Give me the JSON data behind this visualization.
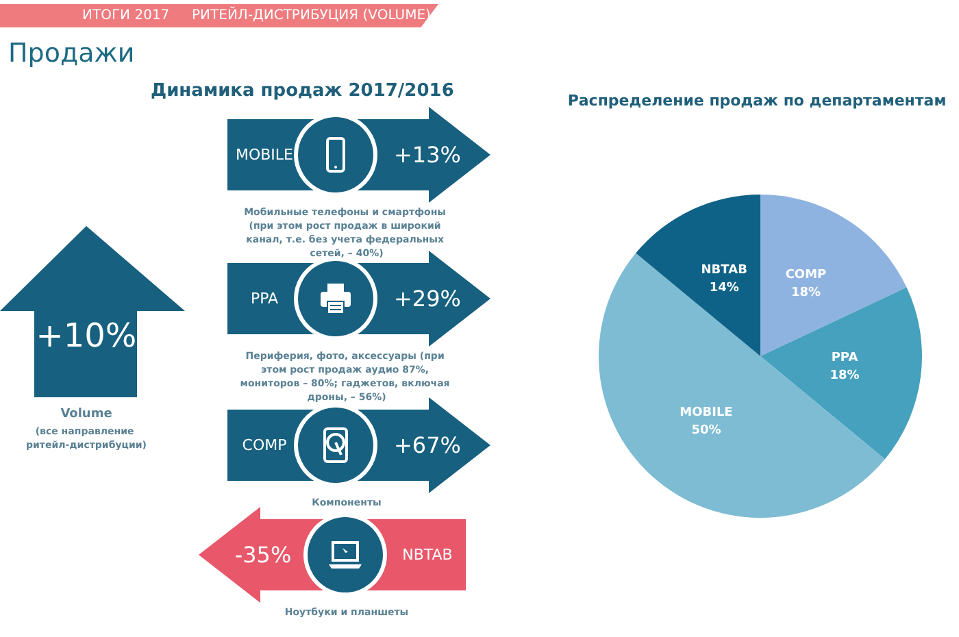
{
  "chart_data": [
    {
      "type": "other",
      "title": "Продажи",
      "annotations": [
        "ИТОГИ 2017",
        "РИТЕЙЛ-ДИСТРИБУЦИЯ (VOLUME)"
      ]
    },
    {
      "type": "other",
      "title": "Динамика продаж 2017/2016",
      "categories": [
        "Volume",
        "MOBILE",
        "PPA",
        "COMP",
        "NBTAB"
      ],
      "values": [
        10,
        13,
        29,
        67,
        -35
      ],
      "value_labels": [
        "+10%",
        "+13%",
        "+29%",
        "+67%",
        "-35%"
      ],
      "colors": [
        "#17607f",
        "#17607f",
        "#17607f",
        "#17607f",
        "#e8576a"
      ],
      "annotations": [
        "(все направление ритейл-дистрибуции)",
        "Мобильные телефоны и смартфоны (при этом рост продаж в широкий канал, т.е. без учета федеральных сетей, – 40%)",
        "Периферия, фото, аксессуары (при этом рост продаж аудио 87%, мониторов – 80%; гаджетов, включая дроны, – 56%)",
        "Компоненты",
        "Ноутбуки и планшеты"
      ]
    },
    {
      "type": "pie",
      "title": "Распределение продаж по департаментам",
      "categories": [
        "COMP",
        "PPA",
        "MOBILE",
        "NBTAB"
      ],
      "values": [
        18,
        18,
        50,
        14
      ],
      "value_labels": [
        "18%",
        "18%",
        "50%",
        "14%"
      ],
      "colors": [
        "#8fb3e0",
        "#45a1bd",
        "#7dbcd3",
        "#0f6287"
      ]
    }
  ]
}
